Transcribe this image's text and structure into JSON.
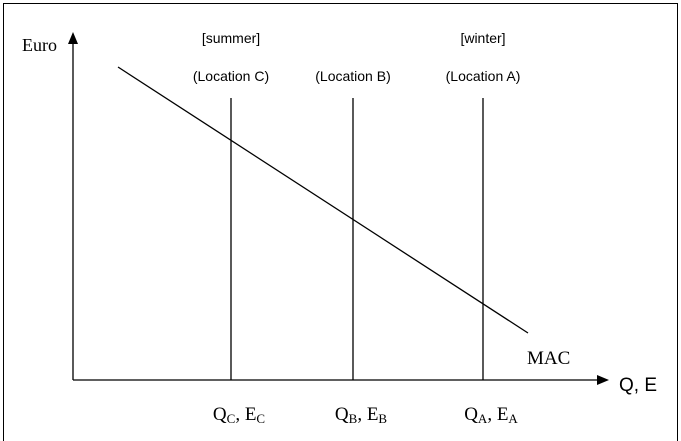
{
  "axes": {
    "y_label": "Euro",
    "x_label": "Q, E"
  },
  "curve_label": "MAC",
  "locations": [
    {
      "season": "[summer]",
      "label": "(Location C)",
      "quantity": [
        "Q",
        "C",
        ", E",
        "C"
      ]
    },
    {
      "label": "(Location B)",
      "quantity": [
        "Q",
        "B",
        ", E",
        "B"
      ]
    },
    {
      "season": "[winter]",
      "label": "(Location A)",
      "quantity": [
        "Q",
        "A",
        ", E",
        "A"
      ]
    }
  ]
}
